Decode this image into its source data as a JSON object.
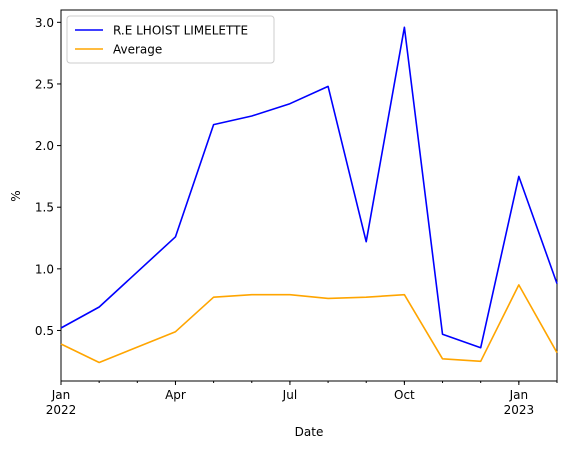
{
  "chart_data": {
    "type": "line",
    "xlabel": "Date",
    "ylabel": "%",
    "x": [
      "2022-01",
      "2022-02",
      "2022-03",
      "2022-04",
      "2022-05",
      "2022-06",
      "2022-07",
      "2022-08",
      "2022-09",
      "2022-10",
      "2022-11",
      "2022-12",
      "2023-01",
      "2023-02"
    ],
    "series": [
      {
        "name": "R.E LHOIST LIMELETTE",
        "color": "#0000ff",
        "values": [
          0.52,
          0.69,
          null,
          1.26,
          2.17,
          2.24,
          2.34,
          2.48,
          1.22,
          2.96,
          0.47,
          0.36,
          1.75,
          0.88
        ]
      },
      {
        "name": "Average",
        "color": "#ffa500",
        "values": [
          0.39,
          0.24,
          null,
          0.49,
          0.77,
          0.79,
          0.79,
          0.76,
          0.77,
          0.79,
          0.27,
          0.25,
          0.87,
          0.32
        ]
      }
    ],
    "ylim": [
      0.09,
      3.1
    ],
    "yticks": [
      "0.5",
      "1.0",
      "1.5",
      "2.0",
      "2.5",
      "3.0"
    ],
    "xticks": [
      {
        "x": "2022-01",
        "line1": "Jan",
        "line2": "2022"
      },
      {
        "x": "2022-04",
        "line1": "Apr",
        "line2": ""
      },
      {
        "x": "2022-07",
        "line1": "Jul",
        "line2": ""
      },
      {
        "x": "2022-10",
        "line1": "Oct",
        "line2": ""
      },
      {
        "x": "2023-01",
        "line1": "Jan",
        "line2": "2023"
      }
    ],
    "grid": false,
    "legend": "top-left"
  }
}
